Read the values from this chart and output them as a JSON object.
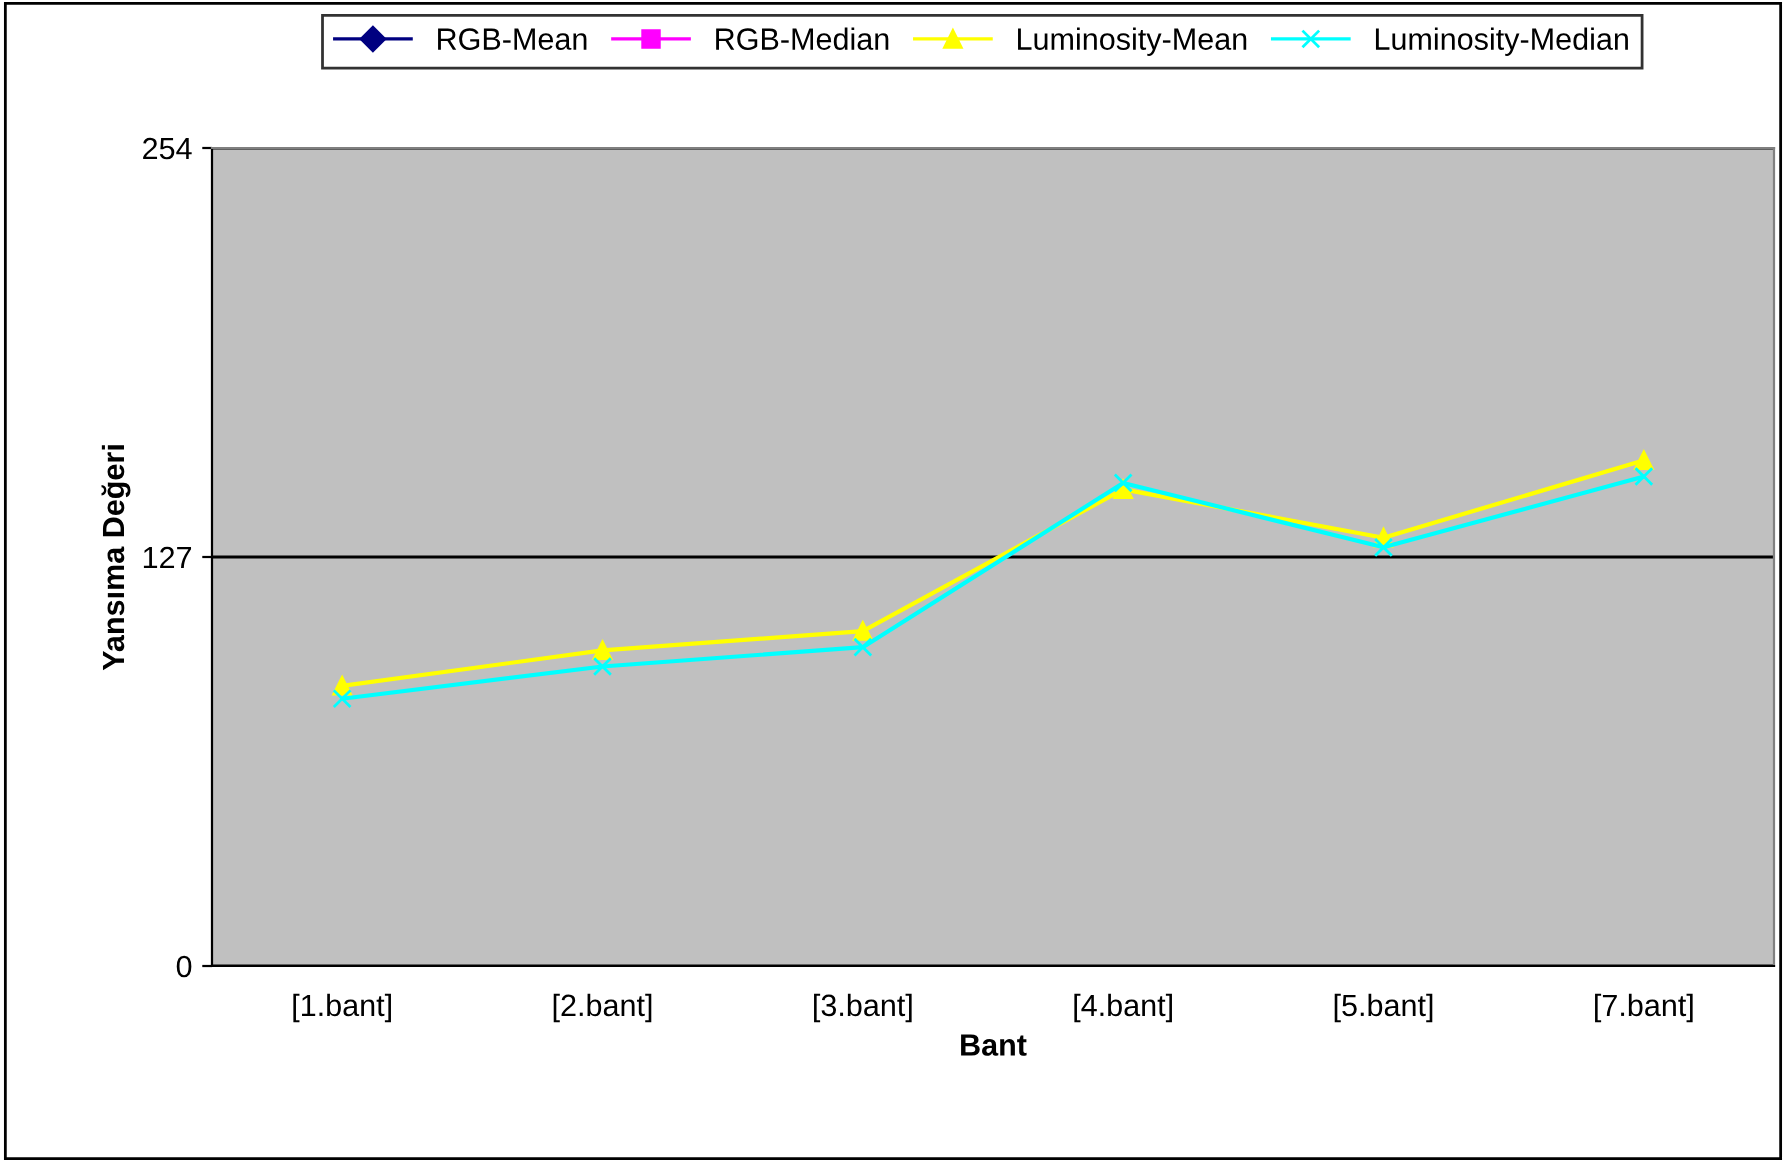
{
  "chart_data": {
    "type": "line",
    "xlabel": "Bant",
    "ylabel": "Yansıma Değeri",
    "categories": [
      "[1.bant]",
      "[2.bant]",
      "[3.bant]",
      "[4.bant]",
      "[5.bant]",
      "[7.bant]"
    ],
    "series": [
      {
        "name": "RGB-Mean",
        "color": "#000080",
        "marker": "diamond",
        "values": [
          null,
          null,
          null,
          null,
          null,
          null
        ]
      },
      {
        "name": "RGB-Median",
        "color": "#ff00ff",
        "marker": "square",
        "values": [
          null,
          null,
          null,
          null,
          null,
          null
        ]
      },
      {
        "name": "Luminosity-Mean",
        "color": "#ffff00",
        "marker": "triangle",
        "values": [
          87,
          98,
          104,
          148,
          133,
          157
        ]
      },
      {
        "name": "Luminosity-Median",
        "color": "#00ffff",
        "marker": "cross",
        "values": [
          83,
          93,
          99,
          150,
          130,
          152
        ]
      }
    ],
    "ylim": [
      0,
      254
    ],
    "yticks": [
      0,
      127,
      254
    ],
    "grid": "y",
    "legend": "top",
    "line_style": "solid"
  }
}
